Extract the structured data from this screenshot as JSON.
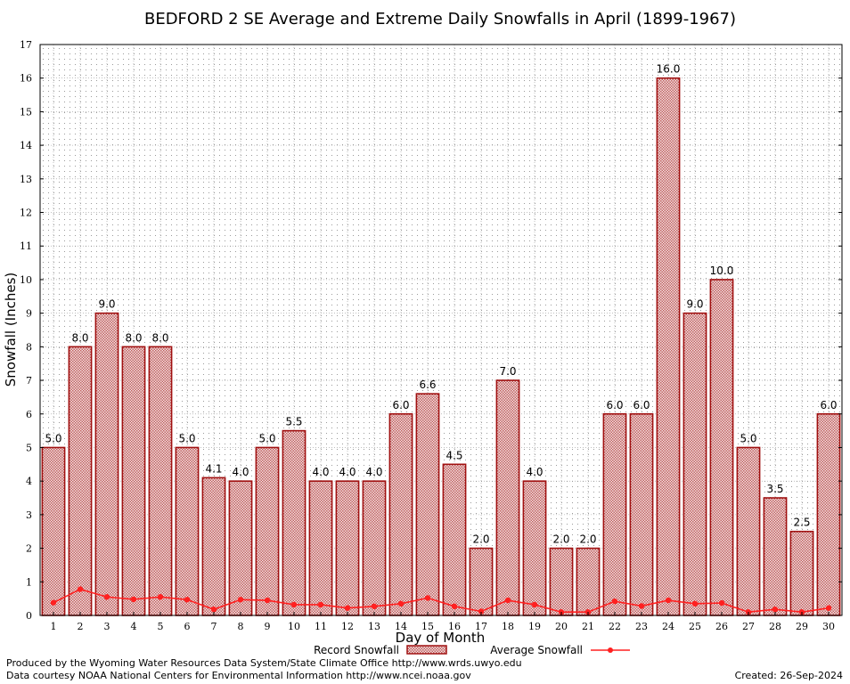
{
  "chart_data": {
    "type": "bar",
    "title": "BEDFORD 2 SE Average and Extreme Daily Snowfalls in April (1899-1967)",
    "xlabel": "Day of Month",
    "ylabel": "Snowfall (Inches)",
    "ylim": [
      0,
      17
    ],
    "yticks": [
      0,
      1,
      2,
      3,
      4,
      5,
      6,
      7,
      8,
      9,
      10,
      11,
      12,
      13,
      14,
      15,
      16,
      17
    ],
    "grid": true,
    "legend_position": "bottom-center",
    "categories": [
      "1",
      "2",
      "3",
      "4",
      "5",
      "6",
      "7",
      "8",
      "9",
      "10",
      "11",
      "12",
      "13",
      "14",
      "15",
      "16",
      "17",
      "18",
      "19",
      "20",
      "21",
      "22",
      "23",
      "24",
      "25",
      "26",
      "27",
      "28",
      "29",
      "30"
    ],
    "series": [
      {
        "name": "Record Snowfall",
        "type": "bar",
        "color": "#a01010",
        "values": [
          5.0,
          8.0,
          9.0,
          8.0,
          8.0,
          5.0,
          4.1,
          4.0,
          5.0,
          5.5,
          4.0,
          4.0,
          4.0,
          6.0,
          6.6,
          4.5,
          2.0,
          7.0,
          4.0,
          2.0,
          2.0,
          6.0,
          6.0,
          16.0,
          9.0,
          10.0,
          5.0,
          3.5,
          2.5,
          6.0
        ],
        "labels": [
          "5.0",
          "8.0",
          "9.0",
          "8.0",
          "8.0",
          "5.0",
          "4.1",
          "4.0",
          "5.0",
          "5.5",
          "4.0",
          "4.0",
          "4.0",
          "6.0",
          "6.6",
          "4.5",
          "2.0",
          "7.0",
          "4.0",
          "2.0",
          "2.0",
          "6.0",
          "6.0",
          "16.0",
          "9.0",
          "10.0",
          "5.0",
          "3.5",
          "2.5",
          "6.0"
        ]
      },
      {
        "name": "Average Snowfall",
        "type": "line",
        "color": "#ff2020",
        "values": [
          0.38,
          0.78,
          0.55,
          0.48,
          0.55,
          0.47,
          0.18,
          0.47,
          0.45,
          0.32,
          0.32,
          0.22,
          0.27,
          0.35,
          0.52,
          0.27,
          0.12,
          0.45,
          0.32,
          0.1,
          0.1,
          0.42,
          0.28,
          0.45,
          0.35,
          0.37,
          0.1,
          0.18,
          0.1,
          0.22
        ]
      }
    ]
  },
  "footer": {
    "produced_by": "Produced by the Wyoming Water Resources Data System/State Climate Office http://www.wrds.uwyo.edu",
    "data_courtesy": "Data courtesy NOAA National Centers for Environmental Information http://www.ncei.noaa.gov",
    "created": "Created:  26-Sep-2024"
  }
}
